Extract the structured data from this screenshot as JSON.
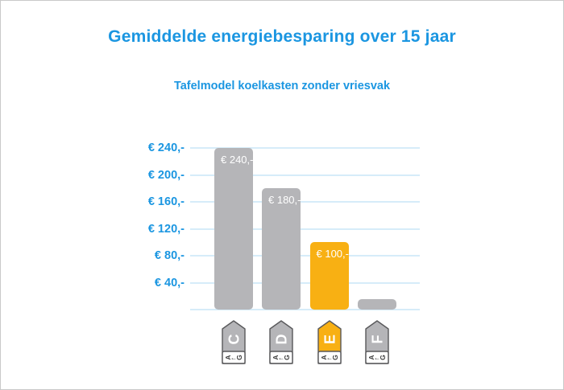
{
  "header": {
    "title": "Gemiddelde energiebesparing over 15 jaar",
    "subtitle": "Tafelmodel koelkasten zonder vriesvak"
  },
  "colors": {
    "accent_blue": "#1b96e1",
    "grid_blue": "#d6ecf9",
    "bar_gray": "#b5b5b8",
    "bar_orange": "#f8b013",
    "tag_border": "#59595b",
    "bar_label_white": "#ffffff",
    "canvas_border": "#c9c9c9"
  },
  "chart_data": {
    "type": "bar",
    "title": "Gemiddelde energiebesparing over 15 jaar",
    "subtitle": "Tafelmodel koelkasten zonder vriesvak",
    "categories": [
      "C",
      "D",
      "E",
      "F"
    ],
    "values": [
      240,
      180,
      100,
      15
    ],
    "bar_labels": [
      "€ 240,-",
      "€ 180,-",
      "€ 100,-",
      ""
    ],
    "bar_colors": [
      "#b5b5b8",
      "#b5b5b8",
      "#f8b013",
      "#b5b5b8"
    ],
    "currency": "€",
    "ylim": [
      0,
      240
    ],
    "yticks": [
      {
        "value": 240,
        "label": "€ 240,-"
      },
      {
        "value": 200,
        "label": "€ 200,-"
      },
      {
        "value": 160,
        "label": "€ 160,-"
      },
      {
        "value": 120,
        "label": "€ 120,-"
      },
      {
        "value": 80,
        "label": "€ 80,-"
      },
      {
        "value": 40,
        "label": "€ 40,-"
      },
      {
        "value": 0,
        "label": ""
      }
    ],
    "grid": true,
    "legend": false,
    "xlabel": "",
    "ylabel": "",
    "x_axis_icons": [
      {
        "letter": "C",
        "scale_first": "A",
        "scale_arrow": "←",
        "scale_last": "G",
        "color": "#b5b5b8"
      },
      {
        "letter": "D",
        "scale_first": "A",
        "scale_arrow": "←",
        "scale_last": "G",
        "color": "#b5b5b8"
      },
      {
        "letter": "E",
        "scale_first": "A",
        "scale_arrow": "←",
        "scale_last": "G",
        "color": "#f8b013"
      },
      {
        "letter": "F",
        "scale_first": "A",
        "scale_arrow": "←",
        "scale_last": "G",
        "color": "#b5b5b8"
      }
    ]
  }
}
